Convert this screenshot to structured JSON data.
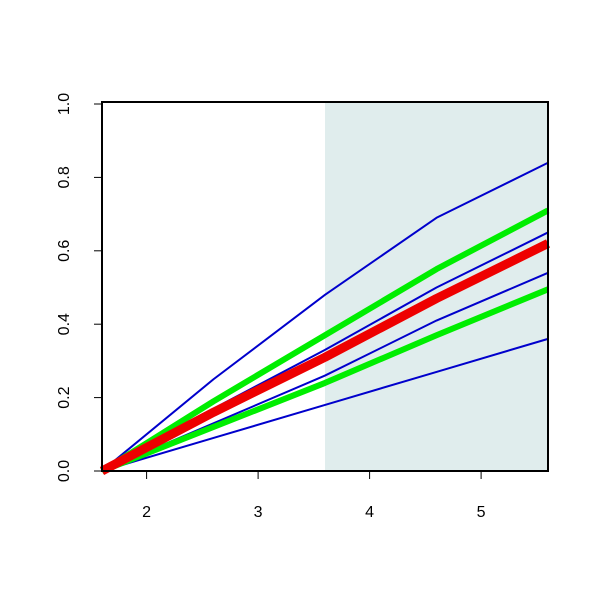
{
  "chart_data": {
    "type": "line",
    "x": [
      1.6,
      2.6,
      3.6,
      4.6,
      5.6
    ],
    "xlim": [
      1.6,
      5.6
    ],
    "ylim": [
      0,
      1
    ],
    "xticks": [
      2,
      3,
      4,
      5
    ],
    "yticks": [
      {
        "value": 0,
        "label": "0.0"
      },
      {
        "value": 0.2,
        "label": "0.2"
      },
      {
        "value": 0.4,
        "label": "0.4"
      },
      {
        "value": 0.6,
        "label": "0.6"
      },
      {
        "value": 0.8,
        "label": "0.8"
      },
      {
        "value": 1,
        "label": "1.0"
      }
    ],
    "shaded_region": [
      3.6,
      5.6
    ],
    "shade_color": "#e0eded",
    "series": [
      {
        "color": "#0000cc",
        "width": 2,
        "values": [
          0,
          0.25,
          0.48,
          0.69,
          0.84
        ]
      },
      {
        "color": "#0000cc",
        "width": 2,
        "values": [
          0,
          0.17,
          0.33,
          0.5,
          0.65
        ]
      },
      {
        "color": "#0000cc",
        "width": 2,
        "values": [
          0,
          0.13,
          0.26,
          0.41,
          0.54
        ]
      },
      {
        "color": "#0000cc",
        "width": 2,
        "values": [
          0,
          0.09,
          0.18,
          0.27,
          0.36
        ]
      },
      {
        "color": "#00ee00",
        "width": 6,
        "values": [
          0,
          0.19,
          0.37,
          0.55,
          0.71
        ]
      },
      {
        "color": "#00ee00",
        "width": 6,
        "values": [
          0,
          0.12,
          0.24,
          0.37,
          0.495
        ]
      },
      {
        "color": "#ee0000",
        "width": 9,
        "values": [
          0,
          0.16,
          0.31,
          0.47,
          0.62
        ]
      }
    ]
  }
}
